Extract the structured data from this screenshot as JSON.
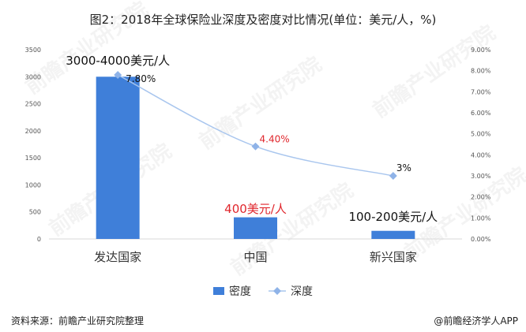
{
  "title": "图2：2018年全球保险业深度及密度对比情况(单位：美元/人，%)",
  "source": "资料来源：前瞻产业研究院整理",
  "credit": "@前瞻经济学人APP",
  "colors": {
    "bar": "#3f7fd9",
    "line": "#a9c6ee",
    "marker": "#8fb3e8",
    "highlight": "#e0262c",
    "axis": "#d9d9d9"
  },
  "chart_data": {
    "type": "bar",
    "categories": [
      "发达国家",
      "中国",
      "新兴国家"
    ],
    "series": [
      {
        "name": "密度",
        "type": "bar",
        "axis": "left",
        "values": [
          3000,
          400,
          150
        ]
      },
      {
        "name": "深度",
        "type": "line",
        "axis": "right",
        "values": [
          7.8,
          4.4,
          3.0
        ]
      }
    ],
    "bar_labels": [
      "3000-4000美元/人",
      "400美元/人",
      "100-200美元/人"
    ],
    "line_labels": [
      "7.80%",
      "4.40%",
      "3%"
    ],
    "left_axis": {
      "range": [
        0,
        3500
      ],
      "ticks": [
        "0",
        "500",
        "1000",
        "1500",
        "2000",
        "2500",
        "3000",
        "3500"
      ]
    },
    "right_axis": {
      "range": [
        0,
        9
      ],
      "ticks": [
        "0.00%",
        "1.00%",
        "2.00%",
        "3.00%",
        "4.00%",
        "5.00%",
        "6.00%",
        "7.00%",
        "8.00%",
        "9.00%"
      ]
    },
    "legend": {
      "position": "bottom",
      "items": [
        "密度",
        "深度"
      ]
    }
  }
}
